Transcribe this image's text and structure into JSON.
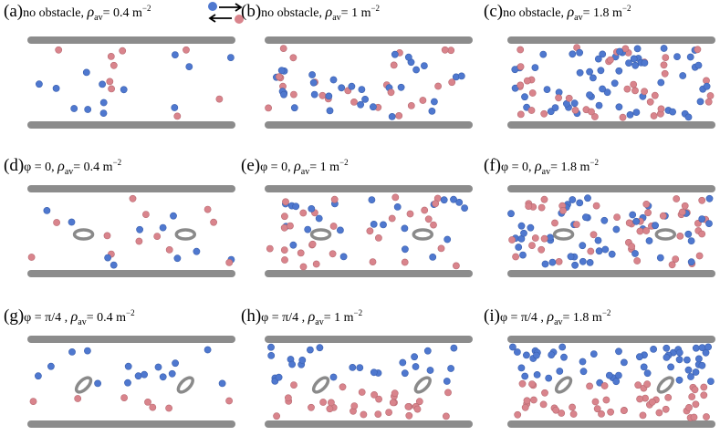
{
  "legend": {
    "blue_color": "#4f78cf",
    "red_color": "#d9848c",
    "icon": "opposite-arrows-icon"
  },
  "colors": {
    "wall": "#8c8c8c",
    "blue": "#4f78cf",
    "red": "#d9848c",
    "obstacle": "#8a8a8a"
  },
  "panels": [
    {
      "tag": "(a)",
      "prefix": "no obstacle, ",
      "sym": "ρ",
      "sub": "av",
      "value": "= 0.4 m",
      "sup": "−2",
      "obstacle": false,
      "angle": null,
      "density": 0.4,
      "seed": 11
    },
    {
      "tag": "(b)",
      "prefix": "no obstacle, ",
      "sym": "ρ",
      "sub": "av",
      "value": "= 1  m",
      "sup": "−2",
      "obstacle": false,
      "angle": null,
      "density": 1,
      "seed": 23
    },
    {
      "tag": "(c)",
      "prefix": "no obstacle, ",
      "sym": "ρ",
      "sub": "av",
      "value": "= 1.8 m",
      "sup": "−2",
      "obstacle": false,
      "angle": null,
      "density": 1.8,
      "seed": 37
    },
    {
      "tag": "(d)",
      "prefix": "φ = 0,  ",
      "sym": "ρ",
      "sub": "av",
      "value": "= 0.4 m",
      "sup": "−2",
      "obstacle": true,
      "angle": "0",
      "density": 0.4,
      "seed": 41
    },
    {
      "tag": "(e)",
      "prefix": "φ = 0,  ",
      "sym": "ρ",
      "sub": "av",
      "value": "= 1  m",
      "sup": "−2",
      "obstacle": true,
      "angle": "0",
      "density": 1,
      "seed": 53
    },
    {
      "tag": "(f)",
      "prefix": "φ = 0,  ",
      "sym": "ρ",
      "sub": "av",
      "value": "= 1.8 m",
      "sup": "−2",
      "obstacle": true,
      "angle": "0",
      "density": 1.8,
      "seed": 67
    },
    {
      "tag": "(g)",
      "prefix": "φ = π/4  , ",
      "sym": "ρ",
      "sub": "av",
      "value": "= 0.4 m",
      "sup": "−2",
      "obstacle": true,
      "angle": "π/4",
      "density": 0.4,
      "seed": 71
    },
    {
      "tag": "(h)",
      "prefix": "φ = π/4  , ",
      "sym": "ρ",
      "sub": "av",
      "value": "= 1  m",
      "sup": "−2",
      "obstacle": true,
      "angle": "π/4",
      "density": 1,
      "seed": 83
    },
    {
      "tag": "(i)",
      "prefix": "φ = π/4  , ",
      "sym": "ρ",
      "sub": "av",
      "value": "= 1.8 m",
      "sup": "−2",
      "obstacle": true,
      "angle": "π/4",
      "density": 1.8,
      "seed": 97
    }
  ]
}
